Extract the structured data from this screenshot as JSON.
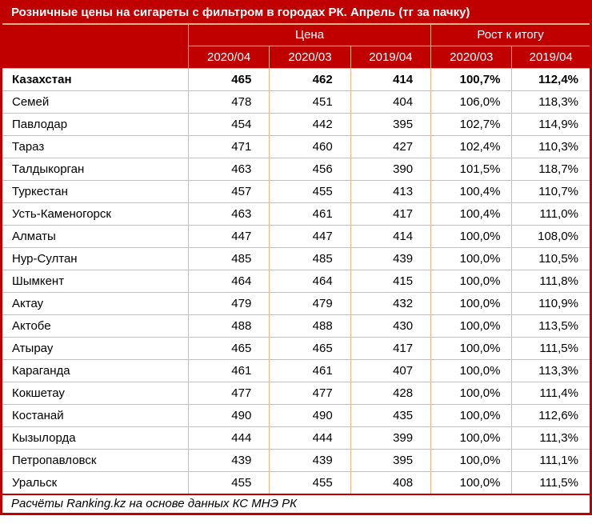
{
  "chart_data": {
    "type": "table",
    "title": "Розничные цены на сигареты с фильтром в городах РК. Апрель (тг за пачку)",
    "column_groups": [
      {
        "label": "Цена",
        "span": 3
      },
      {
        "label": "Рост к итогу",
        "span": 2
      }
    ],
    "columns": [
      "2020/04",
      "2020/03",
      "2019/04",
      "2020/03",
      "2019/04"
    ],
    "rows": [
      {
        "name": "Казахстан",
        "values": [
          "465",
          "462",
          "414",
          "100,7%",
          "112,4%"
        ],
        "bold": true
      },
      {
        "name": "Семей",
        "values": [
          "478",
          "451",
          "404",
          "106,0%",
          "118,3%"
        ]
      },
      {
        "name": "Павлодар",
        "values": [
          "454",
          "442",
          "395",
          "102,7%",
          "114,9%"
        ]
      },
      {
        "name": "Тараз",
        "values": [
          "471",
          "460",
          "427",
          "102,4%",
          "110,3%"
        ]
      },
      {
        "name": "Талдыкорган",
        "values": [
          "463",
          "456",
          "390",
          "101,5%",
          "118,7%"
        ]
      },
      {
        "name": "Туркестан",
        "values": [
          "457",
          "455",
          "413",
          "100,4%",
          "110,7%"
        ]
      },
      {
        "name": "Усть-Каменогорск",
        "values": [
          "463",
          "461",
          "417",
          "100,4%",
          "111,0%"
        ]
      },
      {
        "name": "Алматы",
        "values": [
          "447",
          "447",
          "414",
          "100,0%",
          "108,0%"
        ]
      },
      {
        "name": "Нур-Султан",
        "values": [
          "485",
          "485",
          "439",
          "100,0%",
          "110,5%"
        ]
      },
      {
        "name": "Шымкент",
        "values": [
          "464",
          "464",
          "415",
          "100,0%",
          "111,8%"
        ]
      },
      {
        "name": "Актау",
        "values": [
          "479",
          "479",
          "432",
          "100,0%",
          "110,9%"
        ]
      },
      {
        "name": "Актобе",
        "values": [
          "488",
          "488",
          "430",
          "100,0%",
          "113,5%"
        ]
      },
      {
        "name": "Атырау",
        "values": [
          "465",
          "465",
          "417",
          "100,0%",
          "111,5%"
        ]
      },
      {
        "name": "Караганда",
        "values": [
          "461",
          "461",
          "407",
          "100,0%",
          "113,3%"
        ]
      },
      {
        "name": "Кокшетау",
        "values": [
          "477",
          "477",
          "428",
          "100,0%",
          "111,4%"
        ]
      },
      {
        "name": "Костанай",
        "values": [
          "490",
          "490",
          "435",
          "100,0%",
          "112,6%"
        ]
      },
      {
        "name": "Кызылорда",
        "values": [
          "444",
          "444",
          "399",
          "100,0%",
          "111,3%"
        ]
      },
      {
        "name": "Петропавловск",
        "values": [
          "439",
          "439",
          "395",
          "100,0%",
          "111,1%"
        ]
      },
      {
        "name": "Уральск",
        "values": [
          "455",
          "455",
          "408",
          "100,0%",
          "111,5%"
        ]
      }
    ],
    "footer": "Расчёты Ranking.kz на основе данных КС МНЭ РК"
  },
  "colors": {
    "header_bg": "#c00000",
    "header_text": "#ffffff",
    "frame_border": "#c00000",
    "grid_border": "#f4b183",
    "body_text": "#000000",
    "row_bg": "#ffffff"
  }
}
